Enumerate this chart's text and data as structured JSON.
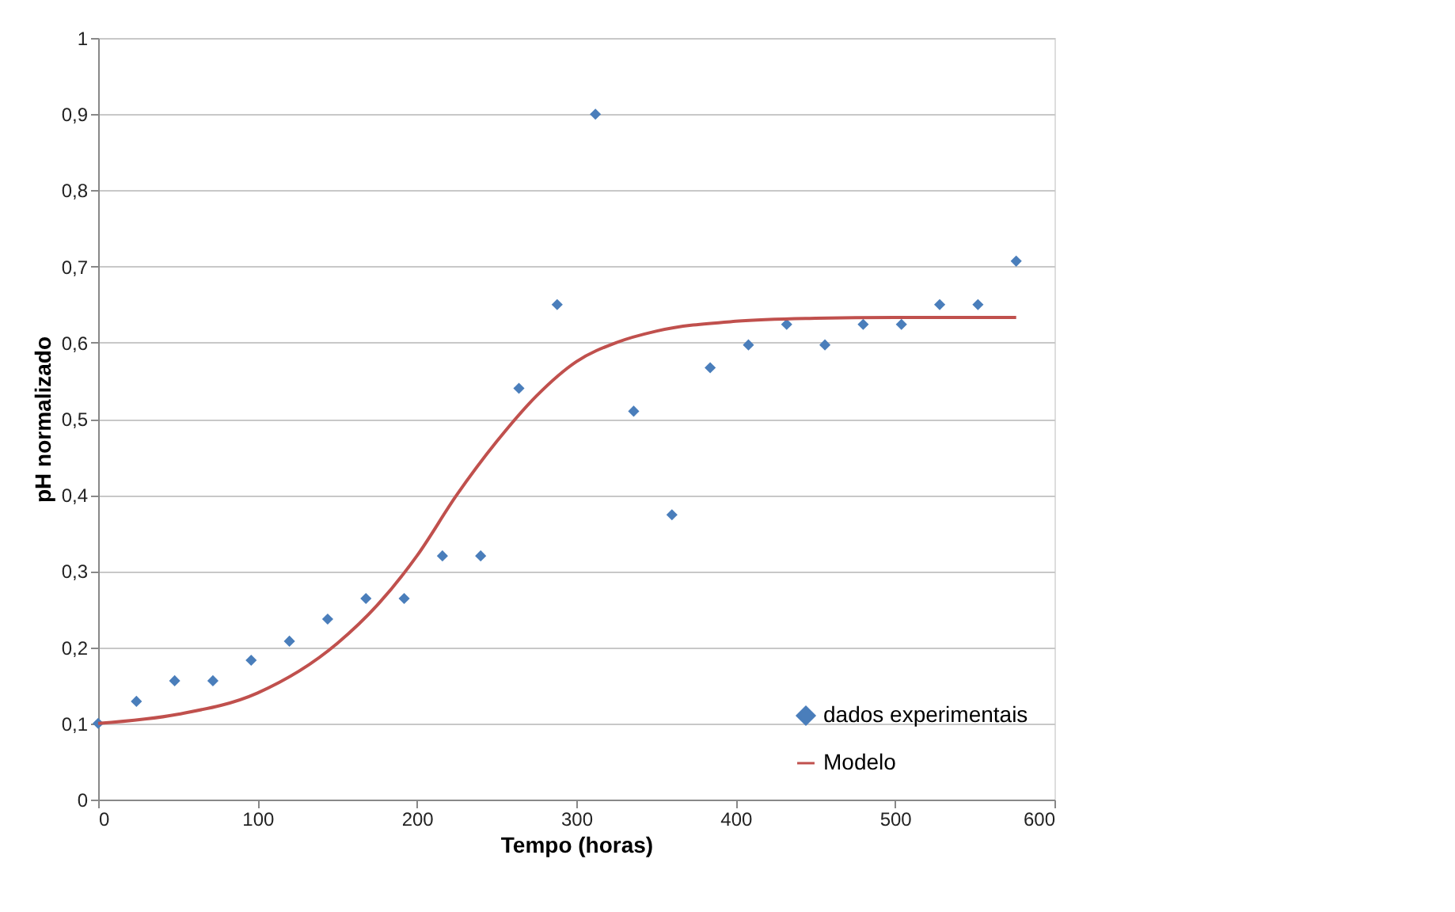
{
  "chart_data": {
    "type": "scatter",
    "xlabel": "Tempo (horas)",
    "ylabel": "pH normalizado",
    "xlim": [
      0,
      600
    ],
    "xticks": [
      0,
      100,
      200,
      300,
      400,
      500,
      600
    ],
    "ylim": [
      0,
      1
    ],
    "yticks": [
      0,
      {
        "value": 0.1,
        "label": "0,1"
      },
      {
        "value": 0.2,
        "label": "0,2"
      },
      {
        "value": 0.3,
        "label": "0,3"
      },
      {
        "value": 0.4,
        "label": "0,4"
      },
      {
        "value": 0.5,
        "label": "0,5"
      },
      {
        "value": 0.6,
        "label": "0,6"
      },
      {
        "value": 0.7,
        "label": "0,7"
      },
      {
        "value": 0.8,
        "label": "0,8"
      },
      {
        "value": 0.9,
        "label": "0,9"
      },
      1
    ],
    "grid": "y",
    "legend": "bottom right",
    "series": [
      {
        "name": "dados experimentais",
        "marker": "diamond",
        "color": "#4a7ebb",
        "x": [
          0,
          24,
          48,
          72,
          96,
          120,
          144,
          168,
          192,
          216,
          240,
          264,
          288,
          312,
          336,
          360,
          384,
          408,
          432,
          456,
          480,
          504,
          528,
          552,
          576
        ],
        "values": [
          0.1,
          0.129,
          0.156,
          0.156,
          0.183,
          0.208,
          0.237,
          0.264,
          0.264,
          0.32,
          0.32,
          0.54,
          0.65,
          0.9,
          0.51,
          0.374,
          0.567,
          0.597,
          0.624,
          0.597,
          0.624,
          0.624,
          0.65,
          0.65,
          0.707
        ]
      },
      {
        "name": "Modelo",
        "type": "line",
        "marker": "none",
        "color": "#c0504d",
        "x": [
          0,
          50,
          100,
          150,
          175,
          200,
          225,
          250,
          275,
          300,
          325,
          350,
          400,
          450,
          500,
          576
        ],
        "values": [
          0.1,
          0.112,
          0.14,
          0.205,
          0.255,
          0.32,
          0.4,
          0.47,
          0.53,
          0.575,
          0.6,
          0.615,
          0.628,
          0.632,
          0.633,
          0.633
        ]
      }
    ]
  }
}
